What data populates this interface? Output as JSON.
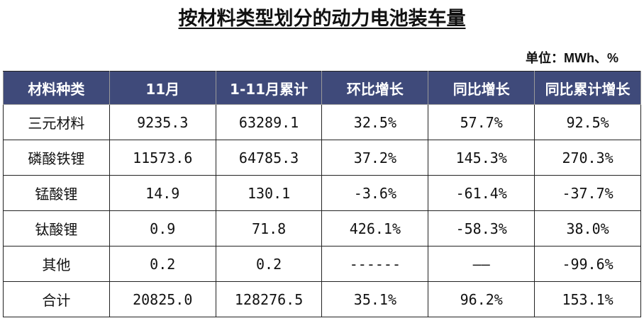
{
  "title": "按材料类型划分的动力电池装车量",
  "unit": "单位：MWh、%",
  "columns": [
    "材料种类",
    "11月",
    "1-11月累计",
    "环比增长",
    "同比增长",
    "同比累计增长"
  ],
  "rows": [
    [
      "三元材料",
      "9235.3",
      "63289.1",
      "32.5%",
      "57.7%",
      "92.5%"
    ],
    [
      "磷酸铁锂",
      "11573.6",
      "64785.3",
      "37.2%",
      "145.3%",
      "270.3%"
    ],
    [
      "锰酸锂",
      "14.9",
      "130.1",
      "-3.6%",
      "-61.4%",
      "-37.7%"
    ],
    [
      "钛酸锂",
      "0.9",
      "71.8",
      "426.1%",
      "-58.3%",
      "38.0%"
    ],
    [
      "其他",
      "0.2",
      "0.2",
      "------",
      "——",
      "-99.6%"
    ],
    [
      "合计",
      "20825.0",
      "128276.5",
      "35.1%",
      "96.2%",
      "153.1%"
    ]
  ],
  "colors": {
    "header_bg": "#3f4a7a",
    "header_text": "#ffffff"
  }
}
